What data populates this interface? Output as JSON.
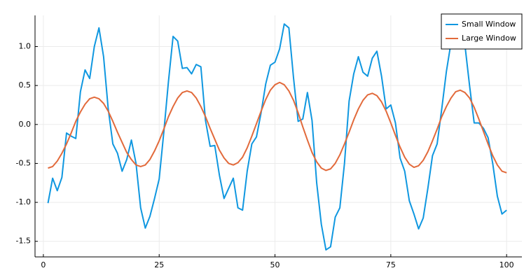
{
  "chart_data": {
    "type": "line",
    "x": [
      1,
      2,
      3,
      4,
      5,
      6,
      7,
      8,
      9,
      10,
      11,
      12,
      13,
      14,
      15,
      16,
      17,
      18,
      19,
      20,
      21,
      22,
      23,
      24,
      25,
      26,
      27,
      28,
      29,
      30,
      31,
      32,
      33,
      34,
      35,
      36,
      37,
      38,
      39,
      40,
      41,
      42,
      43,
      44,
      45,
      46,
      47,
      48,
      49,
      50,
      51,
      52,
      53,
      54,
      55,
      56,
      57,
      58,
      59,
      60,
      61,
      62,
      63,
      64,
      65,
      66,
      67,
      68,
      69,
      70,
      71,
      72,
      73,
      74,
      75,
      76,
      77,
      78,
      79,
      80,
      81,
      82,
      83,
      84,
      85,
      86,
      87,
      88,
      89,
      90,
      91,
      92,
      93,
      94,
      95,
      96,
      97,
      98,
      99,
      100
    ],
    "series": [
      {
        "name": "Small Window",
        "color": "#0f97e0",
        "values": [
          -1.01,
          -0.69,
          -0.85,
          -0.68,
          -0.11,
          -0.15,
          -0.18,
          0.42,
          0.7,
          0.59,
          1.0,
          1.24,
          0.87,
          0.2,
          -0.25,
          -0.37,
          -0.6,
          -0.45,
          -0.2,
          -0.5,
          -1.07,
          -1.33,
          -1.18,
          -0.95,
          -0.7,
          -0.1,
          0.55,
          1.13,
          1.07,
          0.72,
          0.73,
          0.65,
          0.77,
          0.74,
          0.05,
          -0.28,
          -0.27,
          -0.65,
          -0.95,
          -0.82,
          -0.69,
          -1.07,
          -1.1,
          -0.6,
          -0.25,
          -0.16,
          0.15,
          0.52,
          0.76,
          0.8,
          0.97,
          1.29,
          1.24,
          0.6,
          0.04,
          0.07,
          0.41,
          0.05,
          -0.75,
          -1.28,
          -1.61,
          -1.57,
          -1.19,
          -1.07,
          -0.5,
          0.3,
          0.65,
          0.87,
          0.67,
          0.62,
          0.85,
          0.94,
          0.62,
          0.2,
          0.25,
          0.02,
          -0.43,
          -0.6,
          -0.98,
          -1.15,
          -1.34,
          -1.2,
          -0.82,
          -0.4,
          -0.25,
          0.2,
          0.68,
          1.05,
          1.25,
          1.2,
          1.02,
          0.5,
          0.02,
          0.02,
          -0.05,
          -0.17,
          -0.5,
          -0.92,
          -1.15,
          -1.1
        ]
      },
      {
        "name": "Large Window",
        "color": "#e26a3b",
        "values": [
          -0.56,
          -0.54,
          -0.47,
          -0.37,
          -0.25,
          -0.11,
          0.04,
          0.16,
          0.26,
          0.33,
          0.35,
          0.33,
          0.27,
          0.17,
          0.04,
          -0.1,
          -0.23,
          -0.36,
          -0.45,
          -0.52,
          -0.54,
          -0.52,
          -0.45,
          -0.34,
          -0.21,
          -0.06,
          0.1,
          0.23,
          0.34,
          0.41,
          0.43,
          0.41,
          0.34,
          0.23,
          0.1,
          -0.05,
          -0.19,
          -0.33,
          -0.43,
          -0.5,
          -0.52,
          -0.49,
          -0.42,
          -0.3,
          -0.15,
          0.01,
          0.17,
          0.32,
          0.44,
          0.51,
          0.54,
          0.51,
          0.43,
          0.31,
          0.15,
          -0.03,
          -0.2,
          -0.36,
          -0.48,
          -0.56,
          -0.59,
          -0.57,
          -0.5,
          -0.39,
          -0.25,
          -0.1,
          0.06,
          0.2,
          0.31,
          0.38,
          0.4,
          0.37,
          0.29,
          0.17,
          0.02,
          -0.14,
          -0.29,
          -0.42,
          -0.51,
          -0.55,
          -0.53,
          -0.46,
          -0.35,
          -0.21,
          -0.06,
          0.1,
          0.23,
          0.34,
          0.42,
          0.44,
          0.41,
          0.34,
          0.22,
          0.07,
          -0.09,
          -0.25,
          -0.4,
          -0.52,
          -0.6,
          -0.62
        ]
      }
    ],
    "xlim": [
      -1.8,
      103.3
    ],
    "xticks": [
      0,
      25,
      50,
      75,
      100
    ],
    "ylim": [
      -1.7,
      1.4
    ],
    "yticks": [
      -1.5,
      {
        "value": -1,
        "label": "-1.0"
      },
      -0.5,
      {
        "value": 0,
        "label": "0.0"
      },
      0.5,
      {
        "value": 1,
        "label": "1.0"
      }
    ],
    "grid": true,
    "legend": "top-right"
  }
}
